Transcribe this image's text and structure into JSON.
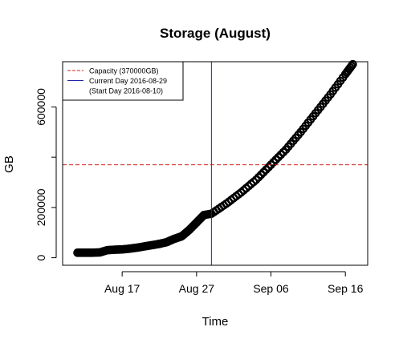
{
  "chart_data": {
    "type": "scatter",
    "title": "Storage (August)",
    "xlabel": "Time",
    "ylabel": "GB",
    "x_tick_labels": [
      "Aug 17",
      "Aug 27",
      "Sep 06",
      "Sep 16"
    ],
    "x_ticks": [
      "2016-08-17",
      "2016-08-27",
      "2016-09-06",
      "2016-09-16"
    ],
    "y_ticks": [
      0,
      200000,
      400000,
      600000
    ],
    "y_tick_labels": [
      "0",
      "200000",
      "",
      "600000"
    ],
    "xlim": [
      "2016-08-09",
      "2016-09-19"
    ],
    "ylim": [
      -30000,
      780000
    ],
    "grid": false,
    "legend": {
      "position": "top-left",
      "entries": [
        {
          "label": "Capacity (370000GB)",
          "color": "#cc2222",
          "style": "dashed"
        },
        {
          "label": "Current Day 2016-08-29",
          "color": "#2222aa",
          "style": "solid"
        },
        {
          "label": "(Start Day 2016-08-10)",
          "color": "",
          "style": "none"
        }
      ]
    },
    "capacity_line": {
      "y": 370000,
      "color": "#cc2222"
    },
    "current_day_line": {
      "x": "2016-08-29",
      "color": "#2222aa"
    },
    "series": [
      {
        "observed": [
          [
            "2016-08-11",
            20000
          ],
          [
            "2016-08-12",
            20000
          ],
          [
            "2016-08-13",
            20000
          ],
          [
            "2016-08-14",
            21000
          ],
          [
            "2016-08-15",
            30000
          ],
          [
            "2016-08-16",
            32000
          ],
          [
            "2016-08-17",
            33000
          ],
          [
            "2016-08-18",
            36000
          ],
          [
            "2016-08-19",
            40000
          ],
          [
            "2016-08-20",
            45000
          ],
          [
            "2016-08-21",
            50000
          ],
          [
            "2016-08-22",
            55000
          ],
          [
            "2016-08-23",
            62000
          ],
          [
            "2016-08-24",
            75000
          ],
          [
            "2016-08-25",
            85000
          ],
          [
            "2016-08-26",
            110000
          ],
          [
            "2016-08-27",
            140000
          ],
          [
            "2016-08-28",
            170000
          ],
          [
            "2016-08-29",
            175000
          ]
        ],
        "projected": [
          [
            "2016-08-29",
            175000
          ],
          [
            "2016-08-31",
            215000
          ],
          [
            "2016-09-02",
            260000
          ],
          [
            "2016-09-04",
            310000
          ],
          [
            "2016-09-06",
            370000
          ],
          [
            "2016-09-08",
            430000
          ],
          [
            "2016-09-10",
            500000
          ],
          [
            "2016-09-12",
            575000
          ],
          [
            "2016-09-14",
            650000
          ],
          [
            "2016-09-16",
            730000
          ],
          [
            "2016-09-17",
            770000
          ]
        ]
      }
    ]
  }
}
